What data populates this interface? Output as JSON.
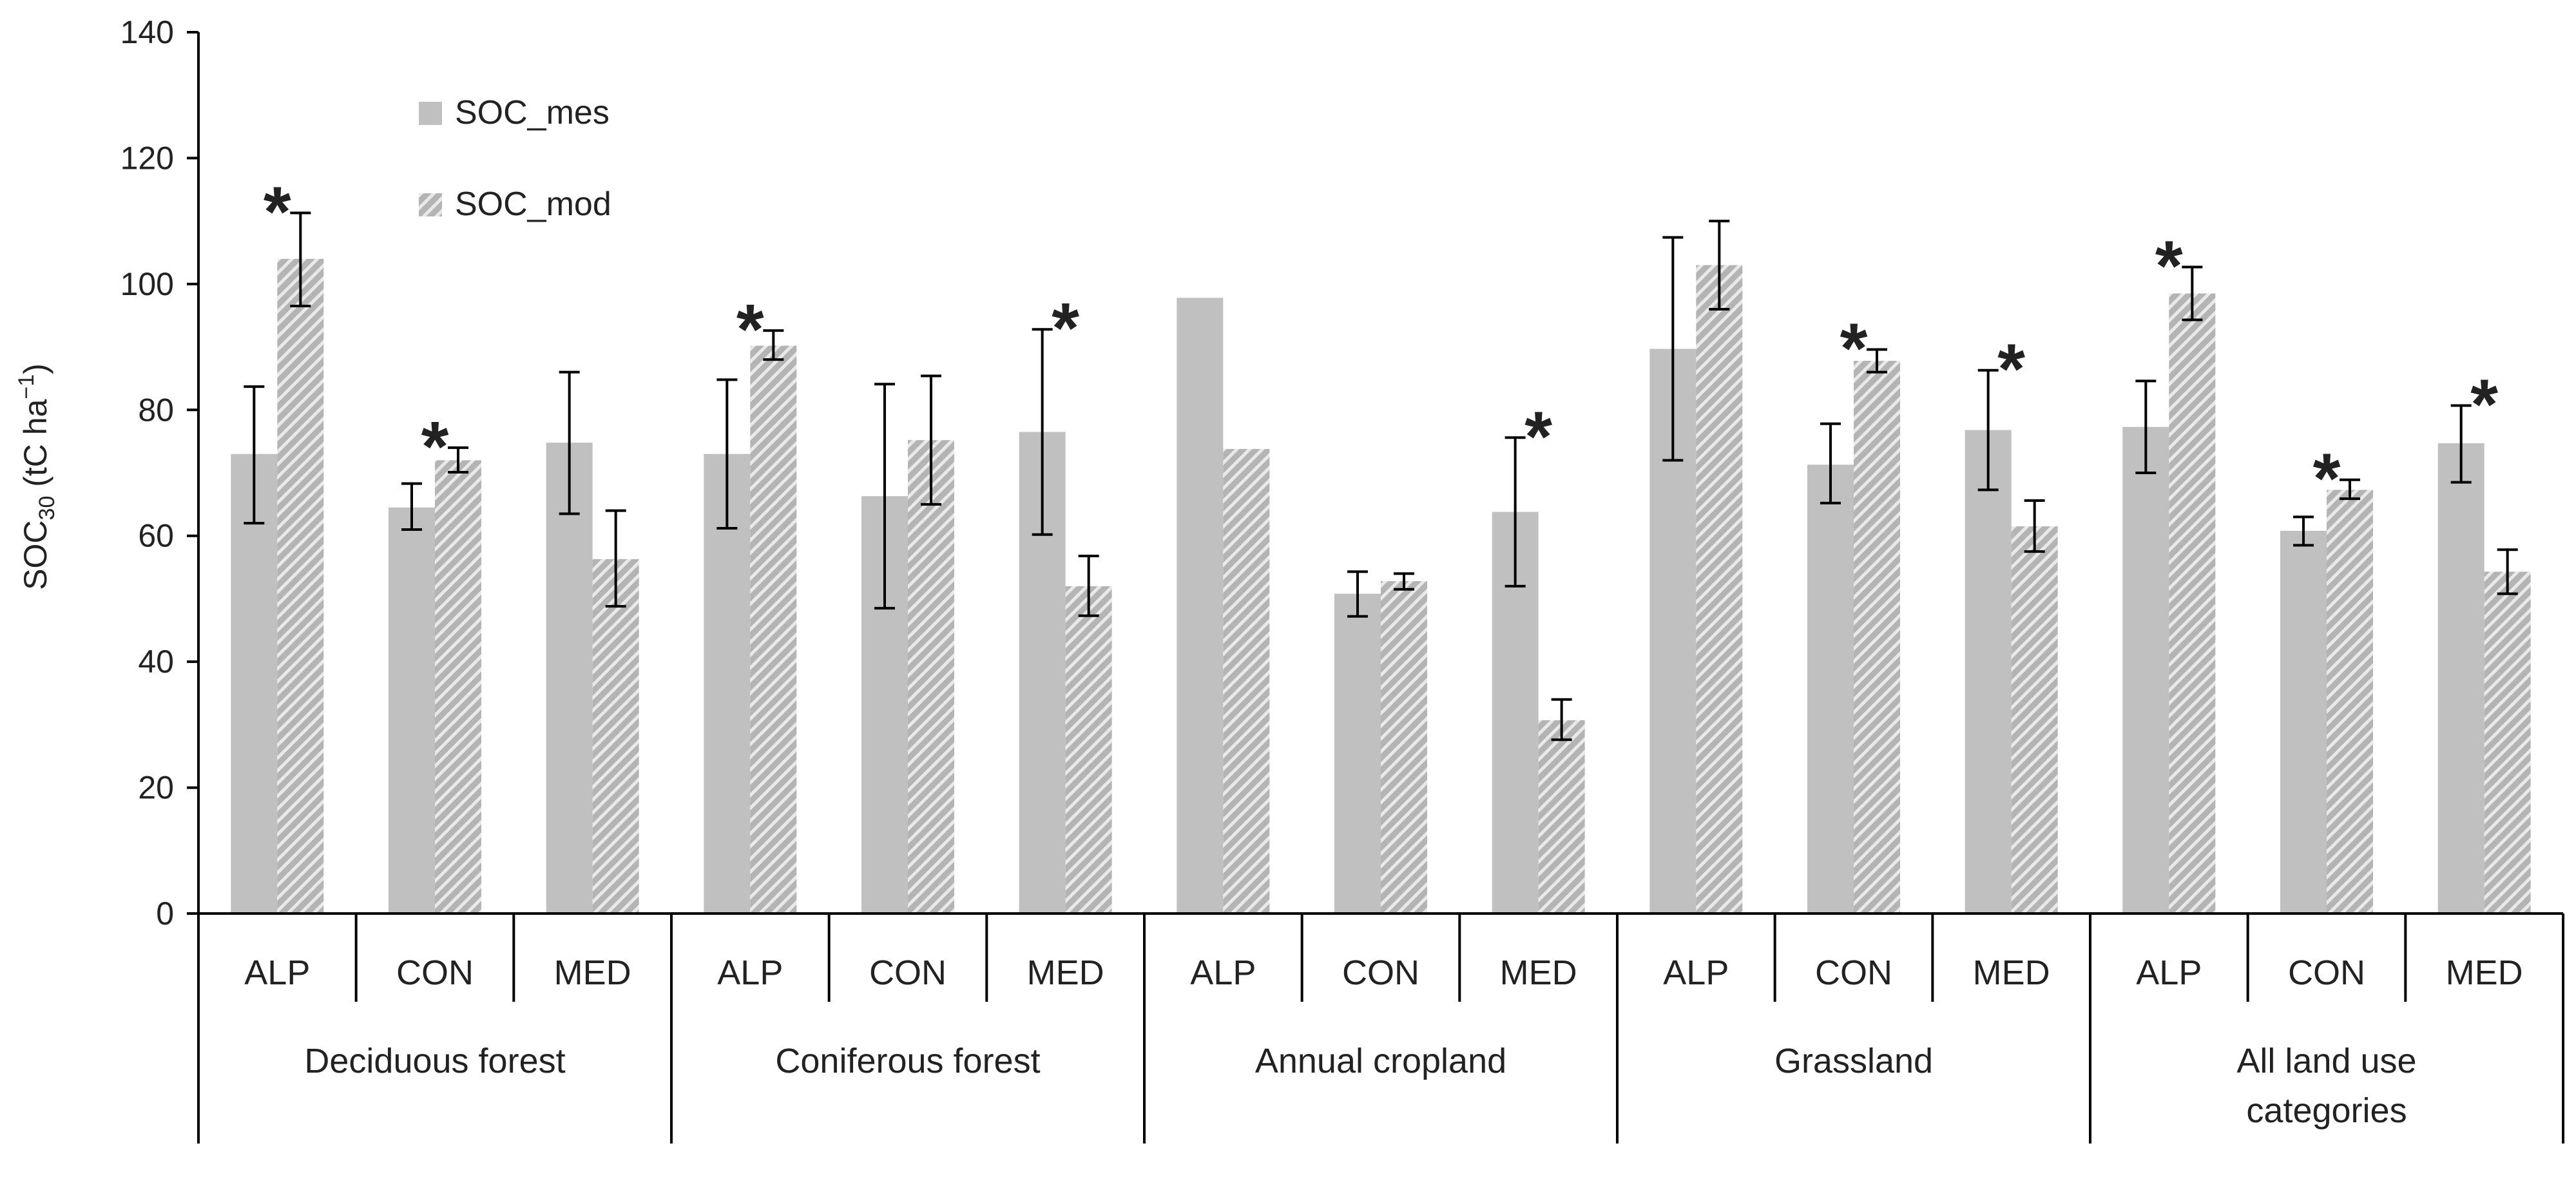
{
  "chart_data": {
    "type": "bar",
    "ylabel": "SOC30 (tC ha⁻¹)",
    "ylim": [
      0,
      140
    ],
    "yticks": [
      "0",
      "20",
      "40",
      "60",
      "80",
      "100",
      "120",
      "140"
    ],
    "legend": {
      "position": "top-left",
      "entries": [
        "SOC_mes",
        "SOC_mod"
      ]
    },
    "groups": [
      "Deciduous forest",
      "Coniferous forest",
      "Annual cropland",
      "Grassland",
      "All land use categories"
    ],
    "regions": [
      "ALP",
      "CON",
      "MED"
    ],
    "categories": [
      "ALP",
      "CON",
      "MED",
      "ALP",
      "CON",
      "MED",
      "ALP",
      "CON",
      "MED",
      "ALP",
      "CON",
      "MED",
      "ALP",
      "CON",
      "MED"
    ],
    "series": [
      {
        "name": "SOC_mes",
        "color": "#c0c0c0",
        "values": [
          73,
          64.5,
          74.8,
          73,
          66.3,
          76.5,
          97.8,
          50.8,
          63.8,
          89.7,
          71.3,
          76.8,
          77.3,
          60.8,
          74.7
        ],
        "err_low": [
          62,
          61,
          63.5,
          61.2,
          48.5,
          60.2,
          null,
          47.2,
          52,
          72,
          65.2,
          67.3,
          70,
          58.5,
          68.5
        ],
        "err_high": [
          83.7,
          68.3,
          86,
          84.8,
          84.1,
          92.8,
          null,
          54.3,
          75.6,
          107.4,
          77.8,
          86.3,
          84.6,
          63,
          80.7
        ]
      },
      {
        "name": "SOC_mod",
        "color": "#a8a8a8",
        "values": [
          104,
          72,
          56.3,
          90.2,
          75.2,
          52,
          73.8,
          52.8,
          30.7,
          103,
          87.8,
          61.5,
          98.5,
          67.3,
          54.3
        ],
        "err_low": [
          96.5,
          70.1,
          48.8,
          88,
          65,
          47.3,
          null,
          51.5,
          27.6,
          96,
          86,
          57.5,
          94.3,
          65.9,
          50.8
        ],
        "err_high": [
          111.3,
          74,
          64,
          92.6,
          85.4,
          56.8,
          null,
          54,
          34,
          110,
          89.6,
          65.6,
          102.7,
          68.9,
          57.8
        ]
      }
    ],
    "significance": [
      true,
      true,
      false,
      true,
      false,
      true,
      false,
      false,
      true,
      false,
      true,
      true,
      true,
      true,
      true
    ],
    "significance_symbol": "*",
    "grid": false
  }
}
